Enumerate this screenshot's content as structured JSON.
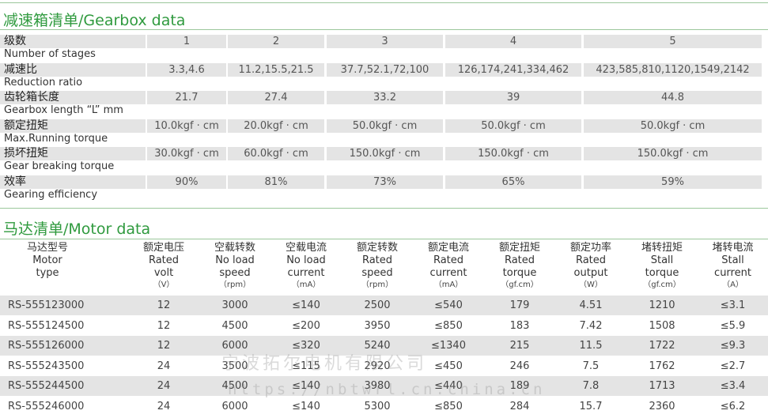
{
  "gearbox": {
    "title": "减速箱清单/Gearbox data",
    "rows": [
      {
        "cn": "级数",
        "en": "Number of stages",
        "values": [
          "1",
          "2",
          "3",
          "4",
          "5"
        ]
      },
      {
        "cn": "减速比",
        "en": "Reduction ratio",
        "values": [
          "3.3,4.6",
          "11.2,15.5,21.5",
          "37.7,52.1,72,100",
          "126,174,241,334,462",
          "423,585,810,1120,1549,2142"
        ]
      },
      {
        "cn": "齿轮箱长度",
        "en": "Gearbox length “L” mm",
        "values": [
          "21.7",
          "27.4",
          "33.2",
          "39",
          "44.8"
        ]
      },
      {
        "cn": "额定扭矩",
        "en": "Max.Running torque",
        "values": [
          "10.0kgf · cm",
          "20.0kgf · cm",
          "50.0kgf · cm",
          "50.0kgf · cm",
          "50.0kgf · cm"
        ]
      },
      {
        "cn": "损坏扭矩",
        "en": "Gear breaking torque",
        "values": [
          "30.0kgf · cm",
          "60.0kgf · cm",
          "150.0kgf · cm",
          "150.0kgf · cm",
          "150.0kgf · cm"
        ]
      },
      {
        "cn": "效率",
        "en": "Gearing efficiency",
        "values": [
          "90%",
          "81%",
          "73%",
          "65%",
          "59%"
        ]
      }
    ]
  },
  "motor": {
    "title": "马达清单/Motor data",
    "headers": [
      {
        "cn": "马达型号",
        "en1": "Motor",
        "en2": "type",
        "unit": ""
      },
      {
        "cn": "额定电压",
        "en1": "Rated",
        "en2": "volt",
        "unit": "（V）"
      },
      {
        "cn": "空载转数",
        "en1": "No load",
        "en2": "speed",
        "unit": "（rpm）"
      },
      {
        "cn": "空载电流",
        "en1": "No load",
        "en2": "current",
        "unit": "（mA）"
      },
      {
        "cn": "额定转数",
        "en1": "Rated",
        "en2": "speed",
        "unit": "（rpm）"
      },
      {
        "cn": "额定电流",
        "en1": "Rated",
        "en2": "current",
        "unit": "（mA）"
      },
      {
        "cn": "额定扭矩",
        "en1": "Rated",
        "en2": "torque",
        "unit": "（gf.cm）"
      },
      {
        "cn": "额定功率",
        "en1": "Rated",
        "en2": "output",
        "unit": "（W）"
      },
      {
        "cn": "堵转扭矩",
        "en1": "Stall",
        "en2": "torque",
        "unit": "（gf.cm）"
      },
      {
        "cn": "堵转电流",
        "en1": "Stall",
        "en2": "current",
        "unit": "（A）"
      }
    ],
    "rows": [
      [
        "RS-555123000",
        "12",
        "3000",
        "≤140",
        "2500",
        "≤540",
        "179",
        "4.51",
        "1210",
        "≤3.1"
      ],
      [
        "RS-555124500",
        "12",
        "4500",
        "≤200",
        "3950",
        "≤850",
        "183",
        "7.42",
        "1508",
        "≤5.9"
      ],
      [
        "RS-555126000",
        "12",
        "6000",
        "≤320",
        "5240",
        "≤1340",
        "215",
        "11.5",
        "1722",
        "≤9.3"
      ],
      [
        "RS-555243500",
        "24",
        "3500",
        "≤115",
        "2920",
        "≤450",
        "246",
        "7.5",
        "1762",
        "≤2.7"
      ],
      [
        "RS-555244500",
        "24",
        "4500",
        "≤140",
        "3980",
        "≤440",
        "189",
        "7.8",
        "1713",
        "≤3.4"
      ],
      [
        "RS-555246000",
        "24",
        "6000",
        "≤140",
        "5300",
        "≤850",
        "284",
        "15.7",
        "2360",
        "≤6.2"
      ]
    ]
  },
  "watermark": {
    "line1": "宁波拓尔电机有限公司",
    "line2": "https://nbtwrl.cn.china.cn"
  }
}
